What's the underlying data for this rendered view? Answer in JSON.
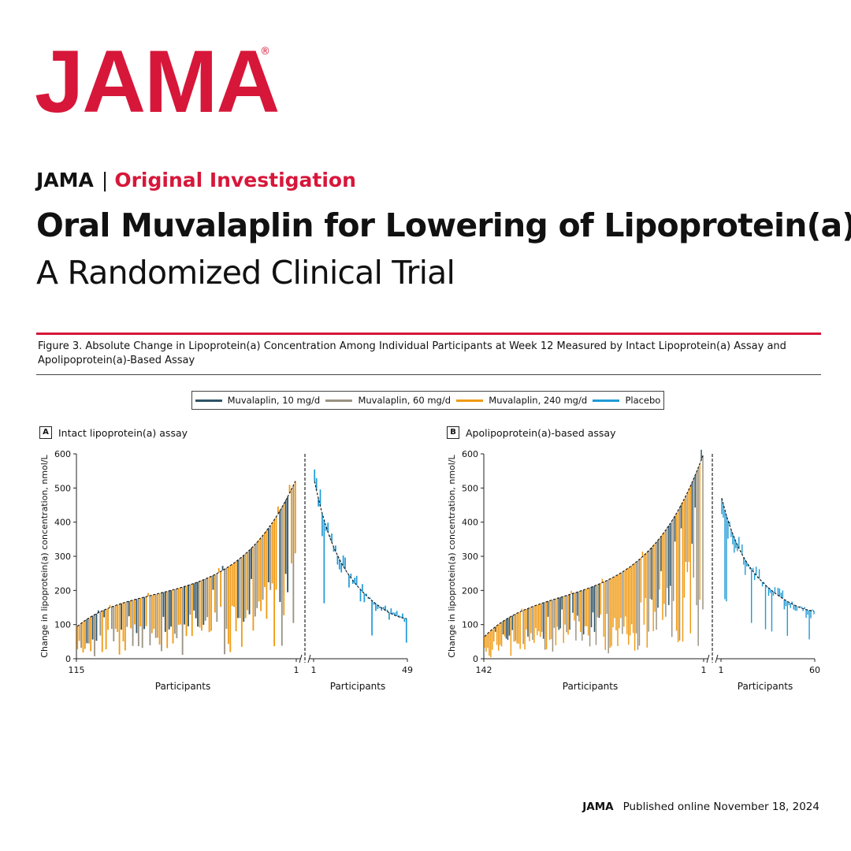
{
  "logo": {
    "text": "JAMA",
    "mark": "®"
  },
  "header": {
    "journal": "JAMA",
    "separator": "|",
    "section": "Original Investigation",
    "title": "Oral Muvalaplin for Lowering of Lipoprotein(a)",
    "subtitle": "A Randomized Clinical Trial"
  },
  "figure": {
    "caption": "Figure 3. Absolute Change in Lipoprotein(a) Concentration Among Individual Participants at Week 12 Measured by Intact Lipoprotein(a) Assay and Apolipoprotein(a)-Based Assay",
    "legend": [
      {
        "label": "Muvalaplin, 10 mg/d",
        "color": "#2e5366"
      },
      {
        "label": "Muvalaplin, 60 mg/d",
        "color": "#9a9282"
      },
      {
        "label": "Muvalaplin, 240 mg/d",
        "color": "#f09a13"
      },
      {
        "label": "Placebo",
        "color": "#1f9ad6"
      }
    ]
  },
  "chart_data": [
    {
      "type": "bar",
      "panel": "A",
      "title": "Intact lipoprotein(a) assay",
      "ylabel": "Change in lipoprotein(a) concentration, nmol/L",
      "xlabel_left": "Participants",
      "xlabel_right": "Participants",
      "ylim": [
        0,
        600
      ],
      "yticks": [
        0,
        100,
        200,
        300,
        400,
        500,
        600
      ],
      "left_group": {
        "n": 115,
        "tick_labels": [
          "115",
          "1"
        ],
        "baseline_start": 95,
        "baseline_end": 520,
        "series": [
          "Muvalaplin, 10 mg/d",
          "Muvalaplin, 60 mg/d",
          "Muvalaplin, 240 mg/d"
        ]
      },
      "right_group": {
        "n": 49,
        "tick_labels": [
          "1",
          "49"
        ],
        "baseline_start": 520,
        "baseline_end": 118,
        "series": [
          "Placebo"
        ]
      },
      "grid": false
    },
    {
      "type": "bar",
      "panel": "B",
      "title": "Apolipoprotein(a)-based assay",
      "ylabel": "Change in lipoprotein(a) concentration, nmol/L",
      "xlabel_left": "Participants",
      "xlabel_right": "Participants",
      "ylim": [
        0,
        600
      ],
      "yticks": [
        0,
        100,
        200,
        300,
        400,
        500,
        600
      ],
      "left_group": {
        "n": 142,
        "tick_labels": [
          "142",
          "1"
        ],
        "baseline_start": 65,
        "baseline_end": 595,
        "series": [
          "Muvalaplin, 10 mg/d",
          "Muvalaplin, 60 mg/d",
          "Muvalaplin, 240 mg/d"
        ]
      },
      "right_group": {
        "n": 60,
        "tick_labels": [
          "1",
          "60"
        ],
        "baseline_start": 470,
        "baseline_end": 140,
        "series": [
          "Placebo"
        ]
      },
      "grid": false
    }
  ],
  "footer": {
    "journal": "JAMA",
    "published": "Published online November 18, 2024"
  }
}
